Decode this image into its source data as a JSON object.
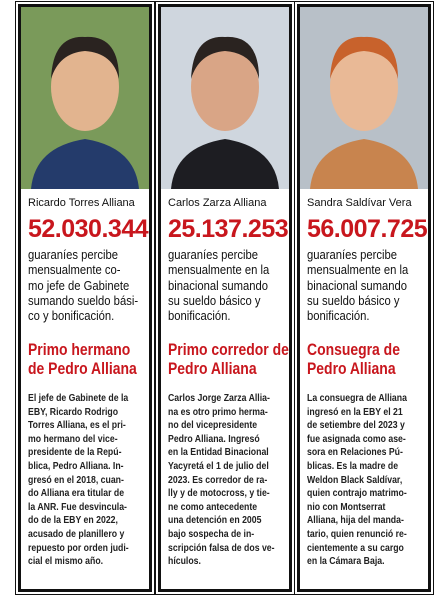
{
  "columns": [
    {
      "name": "Ricardo Torres Alliana",
      "amount": "52.030.344",
      "description": [
        "guaraníes percibe",
        "mensualmente co-",
        "mo jefe de Gabinete",
        "sumando sueldo bási-",
        "co y bonificación."
      ],
      "heading": [
        "Primo hermano",
        "de Pedro Alliana"
      ],
      "body": [
        "El jefe de Gabinete de la",
        "EBY, Ricardo Rodrigo",
        "Torres Alliana, es el pri-",
        "mo hermano del vice-",
        "presidente de la Repú-",
        "blica, Pedro Alliana. In-",
        "gresó en el 2018, cuan-",
        "do Alliana era titular de",
        "la ANR. Fue desvincula-",
        "do de la EBY en 2022,",
        "acusado de planillero y",
        "repuesto por orden judi-",
        "cial el mismo año."
      ]
    },
    {
      "name": "Carlos Zarza Alliana",
      "amount": "25.137.253",
      "description": [
        "guaraníes percibe",
        "mensualmente en la",
        "binacional sumando",
        "su sueldo básico y",
        "bonificación."
      ],
      "heading": [
        "Primo corredor de",
        "Pedro Alliana"
      ],
      "body": [
        "Carlos Jorge Zarza Allia-",
        "na es otro primo herma-",
        "no del vicepresidente",
        "Pedro Alliana. Ingresó",
        "en la Entidad Binacional",
        "Yacyretá el 1 de julio del",
        "2023. Es corredor de ra-",
        "lly y de motocross, y tie-",
        "ne como antecedente",
        "una detención en 2005",
        "bajo sospecha de in-",
        "scripción falsa de dos ve-",
        "hículos."
      ]
    },
    {
      "name": "Sandra Saldívar Vera",
      "amount": "56.007.725",
      "description": [
        "guaraníes percibe",
        "mensualmente en la",
        "binacional sumando",
        "su sueldo básico y",
        "bonificación."
      ],
      "heading": [
        "Consuegra de",
        "Pedro Alliana"
      ],
      "body": [
        "La consuegra de Alliana",
        "ingresó en la EBY el 21",
        "de setiembre del 2023 y",
        "fue asignada como ase-",
        "sora en Relaciones Pú-",
        "blicas. Es la madre de",
        "Weldon Black Saldívar,",
        "quien contrajo matrimo-",
        "nio con Montserrat",
        "Alliana, hija del manda-",
        "tario, quien renunció re-",
        "cientemente a su cargo",
        "en la Cámara Baja."
      ]
    }
  ]
}
